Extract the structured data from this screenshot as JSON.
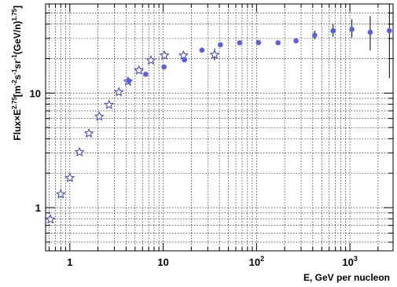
{
  "chart_data": {
    "type": "scatter",
    "title": "",
    "xlabel": "E, GeV per nucleon",
    "ylabel_parts": {
      "a": "Flux×E",
      "a_sup": "2.75",
      "b": "[m",
      "b_sup": "-2",
      "c": "s",
      "c_sup": "-1",
      "d": "sr",
      "d_sup": "-1",
      "e": "(GeV/n)",
      "e_sup": "1.75",
      "f": "]"
    },
    "x_scale": "log",
    "y_scale": "log",
    "xlim": [
      0.55,
      2900
    ],
    "ylim": [
      0.42,
      60
    ],
    "grid": true,
    "x_tick_labels": [
      {
        "value": 1,
        "base": "1",
        "exp": ""
      },
      {
        "value": 10,
        "base": "10",
        "exp": ""
      },
      {
        "value": 100,
        "base": "10",
        "exp": "2"
      },
      {
        "value": 1000,
        "base": "10",
        "exp": "3"
      }
    ],
    "y_tick_labels": [
      {
        "value": 1,
        "text": "1"
      },
      {
        "value": 10,
        "text": "10"
      }
    ],
    "colors": {
      "marker": "#5a5ee0",
      "star_stroke": "#3a3ec8",
      "error_bar": "#000000",
      "grid": "#000000"
    },
    "series": [
      {
        "marker": "open-star",
        "points": [
          {
            "x": 0.62,
            "y": 0.79
          },
          {
            "x": 0.8,
            "y": 1.31
          },
          {
            "x": 1.0,
            "y": 1.82
          },
          {
            "x": 1.27,
            "y": 3.05
          },
          {
            "x": 1.6,
            "y": 4.45
          },
          {
            "x": 2.07,
            "y": 6.25
          },
          {
            "x": 2.63,
            "y": 7.9
          },
          {
            "x": 3.35,
            "y": 10.2
          },
          {
            "x": 4.2,
            "y": 12.6
          },
          {
            "x": 5.5,
            "y": 15.8
          },
          {
            "x": 7.4,
            "y": 19.3
          },
          {
            "x": 10.3,
            "y": 21.3
          },
          {
            "x": 16.5,
            "y": 21.3
          },
          {
            "x": 35.5,
            "y": 21.6,
            "err_low": 19.3,
            "err_high": 24.5
          }
        ]
      },
      {
        "marker": "filled-circle",
        "points": [
          {
            "x": 4.3,
            "y": 12.8
          },
          {
            "x": 6.5,
            "y": 14.6
          },
          {
            "x": 10.2,
            "y": 16.9
          },
          {
            "x": 16.9,
            "y": 19.5
          },
          {
            "x": 26.0,
            "y": 23.7
          },
          {
            "x": 41.0,
            "y": 26.4
          },
          {
            "x": 66.0,
            "y": 27.5
          },
          {
            "x": 105,
            "y": 27.6
          },
          {
            "x": 170,
            "y": 27.5
          },
          {
            "x": 265,
            "y": 28.6,
            "err_low": 27.3,
            "err_high": 30.1
          },
          {
            "x": 420,
            "y": 32.0,
            "err_low": 29.5,
            "err_high": 35.0
          },
          {
            "x": 660,
            "y": 35.0,
            "err_low": 31.0,
            "err_high": 40.0
          },
          {
            "x": 1050,
            "y": 36.0,
            "err_low": 30.5,
            "err_high": 44.0
          },
          {
            "x": 1650,
            "y": 34.0,
            "err_low": 23.5,
            "err_high": 47.0
          },
          {
            "x": 2650,
            "y": 35.0,
            "err_low": 13.5,
            "err_high": 60.0
          }
        ]
      }
    ]
  }
}
